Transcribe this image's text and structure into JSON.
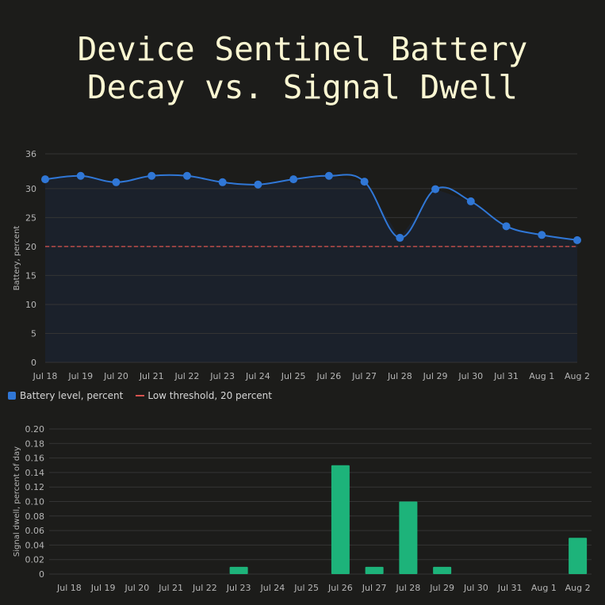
{
  "title_lines": [
    "Device Sentinel Battery",
    "Decay vs. Signal Dwell"
  ],
  "colors": {
    "background": "#1c1c1a",
    "battery": "#3077d6",
    "area": "#1b212b",
    "threshold": "#d9534f",
    "dwell": "#1db37a",
    "grid": "#343434",
    "tick": "#b5b5b5"
  },
  "legend": {
    "battery": "Battery level, percent",
    "threshold": "Low threshold, 20 percent"
  },
  "chart_data": [
    {
      "type": "line",
      "x": [
        "Jul 18",
        "Jul 19",
        "Jul 20",
        "Jul 21",
        "Jul 22",
        "Jul 23",
        "Jul 24",
        "Jul 25",
        "Jul 26",
        "Jul 27",
        "Jul 28",
        "Jul 29",
        "Jul 30",
        "Jul 31",
        "Aug 1",
        "Aug 2"
      ],
      "series": [
        {
          "name": "Battery level, percent",
          "values": [
            31.6,
            32.2,
            31.1,
            32.2,
            32.2,
            31.1,
            30.7,
            31.6,
            32.2,
            31.2,
            21.5,
            29.9,
            27.8,
            23.5,
            22.0,
            21.1
          ]
        }
      ],
      "threshold": {
        "name": "Low threshold, 20 percent",
        "value": 20
      },
      "ylabel": "Battery, percent",
      "yticks": [
        0,
        5,
        10,
        15,
        20,
        25,
        30,
        36
      ],
      "ylim": [
        0,
        36
      ],
      "grid": true,
      "area_fill": true
    },
    {
      "type": "bar",
      "categories": [
        "Jul 18",
        "Jul 19",
        "Jul 20",
        "Jul 21",
        "Jul 22",
        "Jul 23",
        "Jul 24",
        "Jul 25",
        "Jul 26",
        "Jul 27",
        "Jul 28",
        "Jul 29",
        "Jul 30",
        "Jul 31",
        "Aug 1",
        "Aug 2"
      ],
      "values": [
        0,
        0,
        0,
        0,
        0,
        0.01,
        0,
        0,
        0.15,
        0.01,
        0.1,
        0.01,
        0,
        0,
        0,
        0.05
      ],
      "ylabel": "Signal dwell, percent of day",
      "yticks": [
        "0",
        "0.02",
        "0.04",
        "0.06",
        "0.08",
        "0.10",
        "0.12",
        "0.14",
        "0.16",
        "0.18",
        "0.20"
      ],
      "ylim": [
        0,
        0.2
      ],
      "grid": true
    }
  ]
}
